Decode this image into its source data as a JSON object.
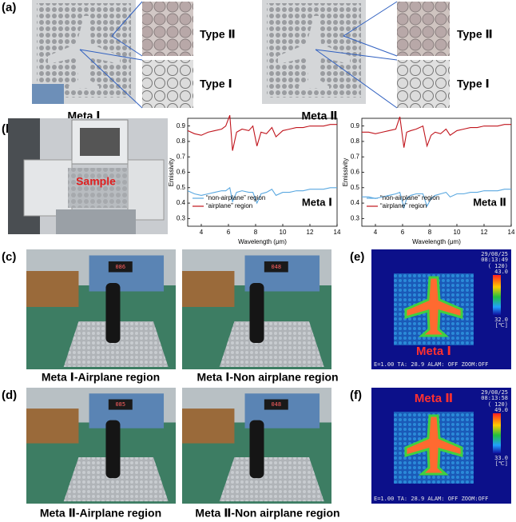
{
  "panel_a": {
    "label": "(a)",
    "meta1": {
      "type2": "Type Ⅱ",
      "type1": "Type Ⅰ",
      "caption": "Meta Ⅰ"
    },
    "meta2": {
      "type2": "Type Ⅱ",
      "type1": "Type Ⅰ",
      "caption": "Meta Ⅱ"
    }
  },
  "panel_b": {
    "label": "(b)",
    "photo_label": "Sample"
  },
  "chart_data": [
    {
      "type": "line",
      "annotation": "Meta Ⅰ",
      "x_label": "Wavelength (μm)",
      "y_label": "Emissivity",
      "x": [
        3,
        3.5,
        4,
        4.5,
        5,
        5.5,
        5.8,
        6.1,
        6.3,
        6.6,
        7,
        7.5,
        7.8,
        8.1,
        8.4,
        8.8,
        9.2,
        9.5,
        10,
        10.5,
        11,
        11.5,
        12,
        12.5,
        13,
        13.5,
        14
      ],
      "series": [
        {
          "name": "“non-airplane” region",
          "color": "#5aa8e0",
          "values": [
            0.48,
            0.46,
            0.45,
            0.46,
            0.47,
            0.48,
            0.48,
            0.5,
            0.41,
            0.47,
            0.48,
            0.47,
            0.47,
            0.4,
            0.46,
            0.47,
            0.49,
            0.45,
            0.47,
            0.47,
            0.48,
            0.48,
            0.49,
            0.49,
            0.49,
            0.5,
            0.5
          ]
        },
        {
          "name": "“airplane” region",
          "color": "#c0141c",
          "values": [
            0.87,
            0.85,
            0.84,
            0.86,
            0.87,
            0.88,
            0.9,
            0.97,
            0.74,
            0.86,
            0.88,
            0.87,
            0.9,
            0.77,
            0.86,
            0.85,
            0.89,
            0.83,
            0.87,
            0.88,
            0.89,
            0.89,
            0.9,
            0.9,
            0.9,
            0.91,
            0.91
          ]
        }
      ],
      "xlim": [
        3,
        14
      ],
      "xticks": [
        4,
        6,
        8,
        10,
        12,
        14
      ],
      "ylim": [
        0.25,
        0.95
      ],
      "yticks": [
        0.3,
        0.4,
        0.5,
        0.6,
        0.7,
        0.8,
        0.9
      ]
    },
    {
      "type": "line",
      "annotation": "Meta Ⅱ",
      "x_label": "Wavelength (μm)",
      "y_label": "Emissivity",
      "x": [
        3,
        3.5,
        4,
        4.5,
        5,
        5.5,
        5.8,
        6.1,
        6.3,
        6.6,
        7,
        7.5,
        7.8,
        8.1,
        8.4,
        8.8,
        9.2,
        9.5,
        10,
        10.5,
        11,
        11.5,
        12,
        12.5,
        13,
        13.5,
        14
      ],
      "series": [
        {
          "name": "“non-airplane” region",
          "color": "#5aa8e0",
          "values": [
            0.44,
            0.44,
            0.43,
            0.44,
            0.45,
            0.46,
            0.47,
            0.37,
            0.43,
            0.45,
            0.46,
            0.46,
            0.38,
            0.43,
            0.45,
            0.46,
            0.47,
            0.44,
            0.46,
            0.46,
            0.47,
            0.47,
            0.48,
            0.48,
            0.48,
            0.49,
            0.49
          ]
        },
        {
          "name": "“airplane” region",
          "color": "#c0141c",
          "values": [
            0.86,
            0.86,
            0.85,
            0.86,
            0.87,
            0.88,
            0.96,
            0.76,
            0.86,
            0.87,
            0.88,
            0.9,
            0.77,
            0.84,
            0.86,
            0.85,
            0.88,
            0.84,
            0.87,
            0.88,
            0.89,
            0.89,
            0.9,
            0.9,
            0.9,
            0.91,
            0.91
          ]
        }
      ],
      "xlim": [
        3,
        14
      ],
      "xticks": [
        4,
        6,
        8,
        10,
        12,
        14
      ],
      "ylim": [
        0.25,
        0.95
      ],
      "yticks": [
        0.3,
        0.4,
        0.5,
        0.6,
        0.7,
        0.8,
        0.9
      ]
    }
  ],
  "panel_c": {
    "label": "(c)",
    "photos": [
      {
        "display": "086",
        "caption": "Meta Ⅰ-Airplane region"
      },
      {
        "display": "048",
        "caption": "Meta Ⅰ-Non airplane region"
      }
    ]
  },
  "panel_d": {
    "label": "(d)",
    "photos": [
      {
        "display": "085",
        "caption": "Meta Ⅱ-Airplane region"
      },
      {
        "display": "048",
        "caption": "Meta Ⅱ-Non airplane region"
      }
    ]
  },
  "panel_e": {
    "label": "(e)",
    "date": "29/08/25",
    "time": "08:13:49",
    "range": "( 120)",
    "max": "43.0",
    "min": "32.0",
    "unit": "[℃]",
    "name": "Meta Ⅰ",
    "status": "E=1.00  TA: 28.9  ALAM: OFF  ZOOM:OFF"
  },
  "panel_f": {
    "label": "(f)",
    "date": "29/08/25",
    "time": "08:13:58",
    "range": "( 120)",
    "max": "49.0",
    "min": "33.0",
    "unit": "[℃]",
    "name": "Meta Ⅱ",
    "status": "E=1.00  TA: 28.9  ALAM: OFF  ZOOM:OFF"
  }
}
